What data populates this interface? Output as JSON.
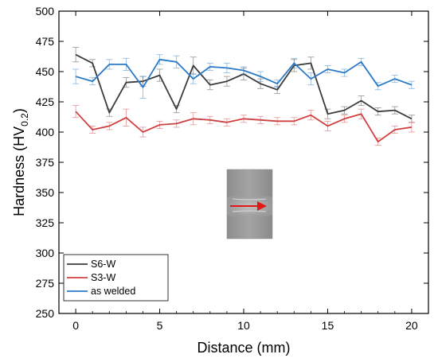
{
  "chart_data": {
    "type": "line",
    "xlabel": "Distance (mm)",
    "ylabel": {
      "main": "Hardness (HV",
      "subscript": "0.2",
      "close": ")"
    },
    "xlim": [
      -1,
      21
    ],
    "ylim": [
      250,
      500
    ],
    "xticks": [
      0,
      5,
      10,
      15,
      20
    ],
    "xtick_labels": [
      "0",
      "5",
      "10",
      "15",
      "20"
    ],
    "yticks": [
      250,
      275,
      300,
      325,
      350,
      375,
      400,
      425,
      450,
      475,
      500
    ],
    "ytick_labels": [
      "250",
      "275",
      "300",
      "325",
      "350",
      "375",
      "400",
      "425",
      "450",
      "475",
      "500"
    ],
    "x": [
      0,
      1,
      2,
      3,
      4,
      5,
      6,
      7,
      8,
      9,
      10,
      11,
      12,
      13,
      14,
      15,
      16,
      17,
      18,
      19,
      20
    ],
    "legend_position": "bottom-left",
    "grid": false,
    "series": [
      {
        "name": "S6-W",
        "color": "#3c3c3c",
        "values": [
          464,
          457,
          416,
          441,
          442,
          447,
          419,
          455,
          439,
          442,
          448,
          440,
          435,
          455,
          457,
          415,
          418,
          426,
          417,
          418,
          411
        ],
        "errors": [
          6,
          3,
          3,
          4,
          4,
          5,
          3,
          7,
          4,
          4,
          5,
          4,
          3,
          5,
          5,
          4,
          3,
          4,
          3,
          3,
          3
        ]
      },
      {
        "name": "S3-W",
        "color": "#d04040",
        "values": [
          417,
          402,
          405,
          412,
          400,
          406,
          407,
          411,
          410,
          408,
          411,
          410,
          409,
          409,
          414,
          405,
          411,
          415,
          392,
          402,
          404
        ],
        "errors": [
          5,
          3,
          3,
          7,
          4,
          3,
          3,
          5,
          3,
          3,
          3,
          3,
          3,
          3,
          4,
          4,
          3,
          4,
          3,
          3,
          4
        ]
      },
      {
        "name": "as welded",
        "color": "#2a7ac8",
        "values": [
          446,
          442,
          456,
          456,
          437,
          460,
          458,
          444,
          454,
          453,
          451,
          446,
          440,
          457,
          444,
          452,
          449,
          458,
          438,
          444,
          439
        ],
        "errors": [
          6,
          3,
          4,
          5,
          9,
          4,
          5,
          4,
          3,
          4,
          3,
          4,
          3,
          4,
          5,
          3,
          3,
          3,
          3,
          3,
          3
        ]
      }
    ],
    "inset": "sample-macrograph-with-red-arrow"
  }
}
